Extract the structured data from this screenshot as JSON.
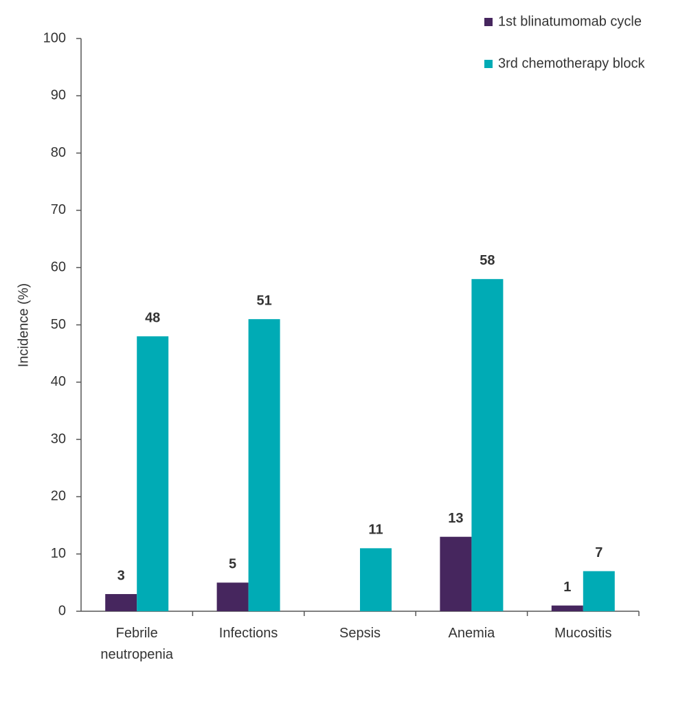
{
  "chart_data": {
    "type": "bar",
    "y_label": "Incidence (%)",
    "categories": [
      "Febrile neutropenia",
      "Infections",
      "Sepsis",
      "Anemia",
      "Mucositis"
    ],
    "series": [
      {
        "name": "1st blinatumomab cycle",
        "color": "#46265e",
        "values": [
          3,
          5,
          null,
          13,
          1
        ]
      },
      {
        "name": "3rd chemotherapy block",
        "color": "#00abb5",
        "values": [
          48,
          51,
          11,
          58,
          7
        ]
      }
    ],
    "ylim": [
      0,
      100
    ],
    "yticks": [
      0,
      10,
      20,
      30,
      40,
      50,
      60,
      70,
      80,
      90,
      100
    ],
    "grid": false,
    "legend": "top-right"
  }
}
